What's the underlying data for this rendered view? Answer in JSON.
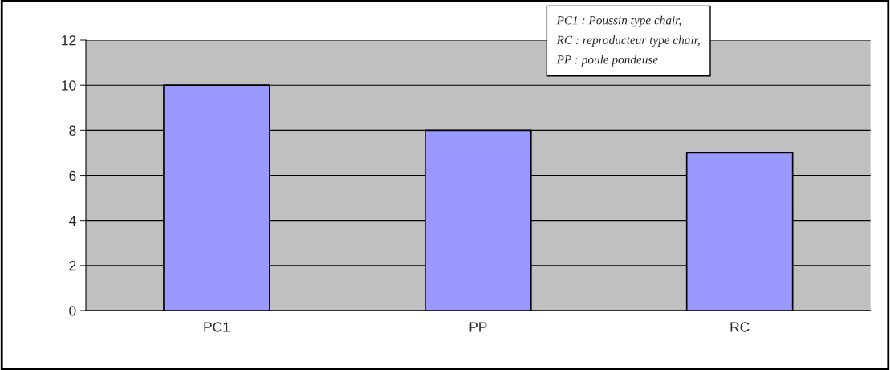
{
  "chart_data": {
    "type": "bar",
    "categories": [
      "PC1",
      "PP",
      "RC"
    ],
    "values": [
      10,
      8,
      7
    ],
    "color": "#9999ff",
    "ylim": [
      0,
      12
    ],
    "yticks": [
      0,
      2,
      4,
      6,
      8,
      10,
      12
    ],
    "grid": "y",
    "annotations": [
      "PC1 : Poussin type chair,",
      "RC : reproducteur type chair,",
      "PP : poule pondeuse"
    ]
  }
}
